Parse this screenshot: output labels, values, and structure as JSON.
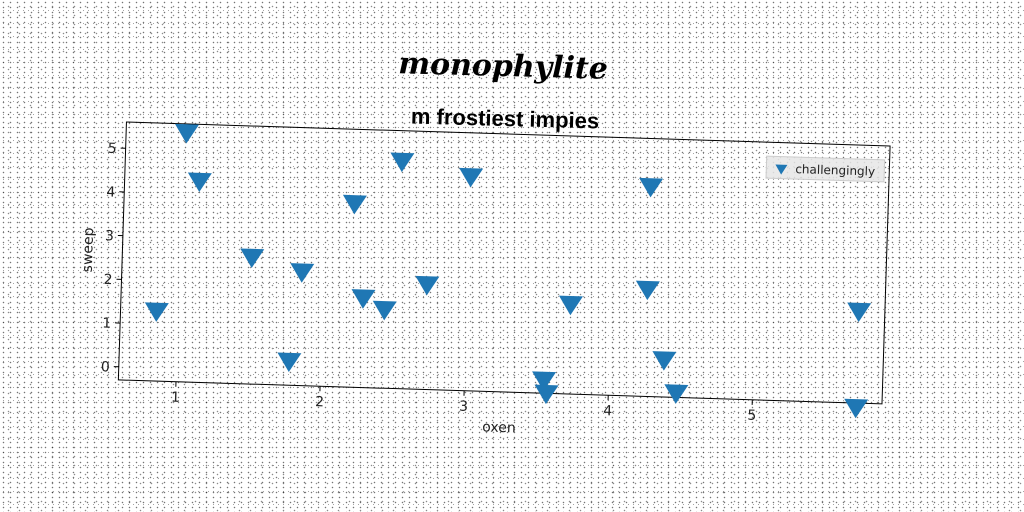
{
  "chart_data": {
    "type": "scatter",
    "title": "monophylite",
    "subtitle": "m frostiest impies",
    "xlabel": "oxen",
    "ylabel": "sweep",
    "xlim": [
      0.6,
      5.9
    ],
    "ylim": [
      -0.3,
      5.6
    ],
    "xticks": [
      1,
      2,
      3,
      4,
      5
    ],
    "yticks": [
      0,
      1,
      2,
      3,
      4,
      5
    ],
    "grid": false,
    "legend_position": "top-right",
    "marker": "triangle-down",
    "color": "#1f77b4",
    "series": [
      {
        "name": "challengingly",
        "points": [
          [
            0.85,
            1.3
          ],
          [
            1.02,
            5.4
          ],
          [
            1.12,
            4.3
          ],
          [
            1.5,
            2.6
          ],
          [
            1.78,
            0.25
          ],
          [
            1.85,
            2.3
          ],
          [
            2.2,
            3.9
          ],
          [
            2.28,
            1.75
          ],
          [
            2.43,
            1.5
          ],
          [
            2.52,
            4.9
          ],
          [
            2.72,
            2.1
          ],
          [
            3.0,
            4.6
          ],
          [
            3.55,
            0.0
          ],
          [
            3.57,
            -0.3
          ],
          [
            3.72,
            1.75
          ],
          [
            4.25,
            4.5
          ],
          [
            4.25,
            2.15
          ],
          [
            4.38,
            0.55
          ],
          [
            4.47,
            -0.2
          ],
          [
            5.72,
            1.8
          ],
          [
            5.72,
            -0.4
          ]
        ]
      }
    ]
  }
}
